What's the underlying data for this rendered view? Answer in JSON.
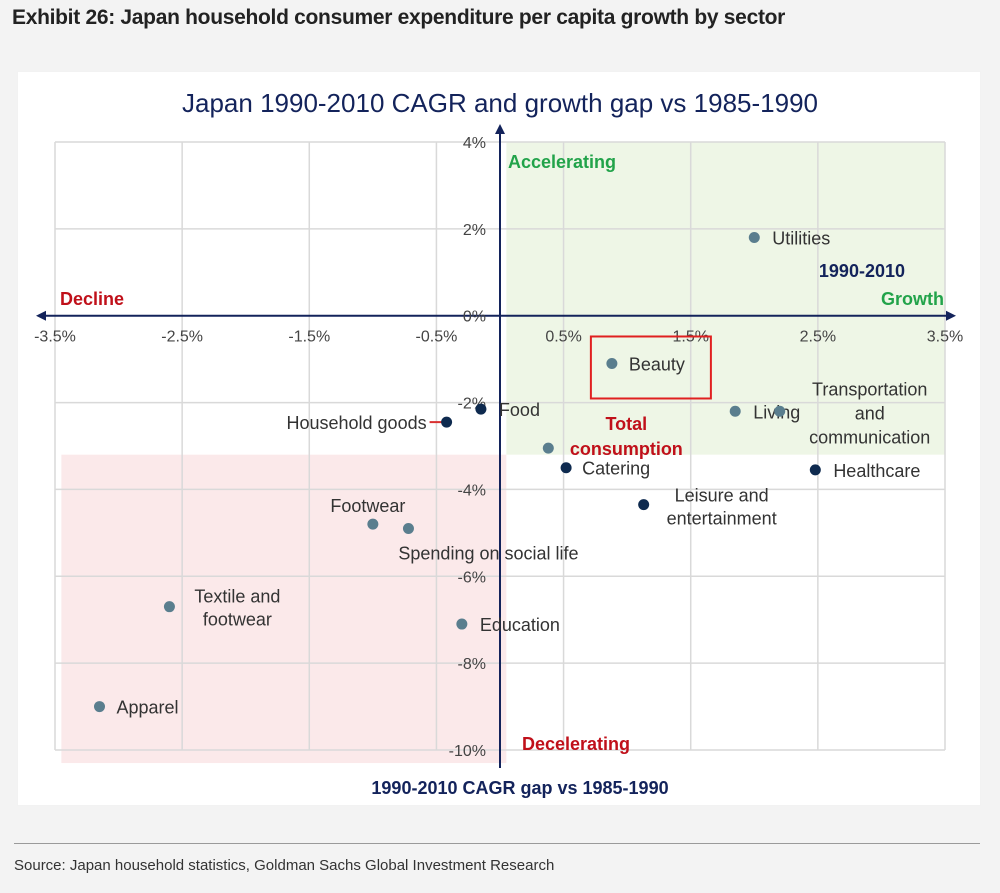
{
  "exhibit": {
    "title": "Exhibit 26: Japan household consumer expenditure per capita growth by sector"
  },
  "source": "Source: Japan household statistics, Goldman Sachs Global Investment Research",
  "colors": {
    "accelerate_zone": "#eef6e6",
    "decline_zone": "#fbe9ea",
    "axis": "#13235b",
    "grid": "#d9d9d9",
    "point_light": "#5a7e8e",
    "point_dark": "#0e2a4f",
    "highlight_box": "#e02020",
    "leader": "#d93030"
  },
  "chart_data": {
    "type": "scatter",
    "title": "Japan 1990-2010 CAGR and growth gap vs 1985-1990",
    "xlabel": "1990-2010 Growth",
    "xlabel_lines": [
      "1990-2010",
      "Growth"
    ],
    "ylabel": "1990-2010 CAGR gap vs 1985-1990",
    "xlim": [
      -3.5,
      3.5
    ],
    "ylim": [
      -10,
      4
    ],
    "x_ticks": [
      -3.5,
      -2.5,
      -1.5,
      -0.5,
      0.5,
      1.5,
      2.5,
      3.5
    ],
    "x_tick_labels": [
      "-3.5%",
      "-2.5%",
      "-1.5%",
      "-0.5%",
      "0.5%",
      "1.5%",
      "2.5%",
      "3.5%"
    ],
    "y_ticks": [
      4,
      2,
      0,
      -2,
      -4,
      -6,
      -8,
      -10
    ],
    "y_tick_labels": [
      "4%",
      "2%",
      "0%",
      "-2%",
      "-4%",
      "-6%",
      "-8%",
      "-10%"
    ],
    "grid": true,
    "quadrant_labels": {
      "top": "Accelerating",
      "bottom": "Decelerating",
      "left": "Decline",
      "right": "Growth"
    },
    "zones": [
      {
        "name": "accelerate",
        "x": [
          0.05,
          3.5
        ],
        "y": [
          -3.2,
          4
        ]
      },
      {
        "name": "decline",
        "x": [
          -3.45,
          0.05
        ],
        "y": [
          -10.3,
          -3.2
        ]
      }
    ],
    "points": [
      {
        "name": "Utilities",
        "x": 2.0,
        "y": 1.8,
        "shade": "light",
        "label_lines": [
          "Utilities"
        ]
      },
      {
        "name": "Beauty",
        "x": 0.88,
        "y": -1.1,
        "shade": "light",
        "label_lines": [
          "Beauty"
        ],
        "highlight": true
      },
      {
        "name": "Living",
        "x": 1.85,
        "y": -2.2,
        "shade": "light",
        "label_lines": [
          "Living"
        ]
      },
      {
        "name": "Transportation and communication",
        "x": 2.2,
        "y": -2.2,
        "shade": "light",
        "label_lines": [
          "Transportation",
          "and",
          "communication"
        ]
      },
      {
        "name": "Food",
        "x": -0.15,
        "y": -2.15,
        "shade": "dark",
        "label_lines": [
          "Food"
        ]
      },
      {
        "name": "Household goods",
        "x": -0.42,
        "y": -2.45,
        "shade": "dark",
        "label_lines": [
          "Household goods"
        ],
        "leader": true
      },
      {
        "name": "Total consumption",
        "x": 0.38,
        "y": -3.05,
        "shade": "light",
        "label_lines": [
          "Total",
          "consumption"
        ],
        "emphasis": true
      },
      {
        "name": "Catering",
        "x": 0.52,
        "y": -3.5,
        "shade": "dark",
        "label_lines": [
          "Catering"
        ]
      },
      {
        "name": "Healthcare",
        "x": 2.48,
        "y": -3.55,
        "shade": "dark",
        "label_lines": [
          "Healthcare"
        ]
      },
      {
        "name": "Leisure and entertainment",
        "x": 1.13,
        "y": -4.35,
        "shade": "dark",
        "label_lines": [
          "Leisure and",
          "entertainment"
        ]
      },
      {
        "name": "Footwear",
        "x": -1.0,
        "y": -4.8,
        "shade": "light",
        "label_lines": [
          "Footwear"
        ]
      },
      {
        "name": "Spending on social life",
        "x": -0.72,
        "y": -4.9,
        "shade": "light",
        "label_lines": [
          "Spending on social life"
        ]
      },
      {
        "name": "Textile and footwear",
        "x": -2.6,
        "y": -6.7,
        "shade": "light",
        "label_lines": [
          "Textile and",
          "footwear"
        ]
      },
      {
        "name": "Education",
        "x": -0.3,
        "y": -7.1,
        "shade": "light",
        "label_lines": [
          "Education"
        ]
      },
      {
        "name": "Apparel",
        "x": -3.15,
        "y": -9.0,
        "shade": "light",
        "label_lines": [
          "Apparel"
        ]
      }
    ]
  }
}
